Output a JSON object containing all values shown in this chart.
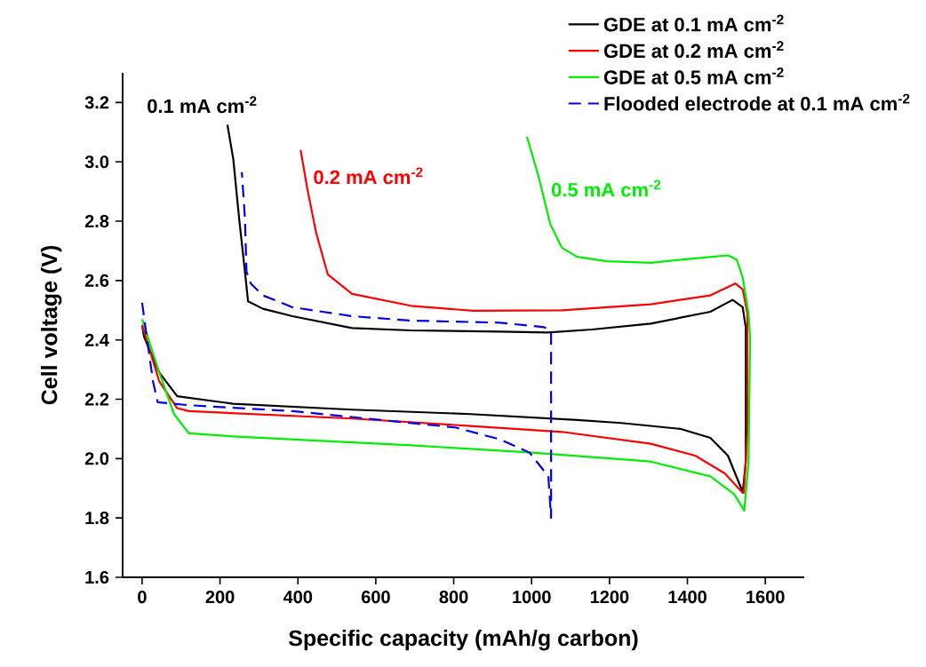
{
  "chart_data": {
    "type": "line",
    "xlabel": "Specific capacity (mAh/g carbon)",
    "ylabel": "Cell voltage (V)",
    "xlim": [
      -50,
      1700
    ],
    "ylim": [
      1.6,
      3.3
    ],
    "xticks": [
      0,
      200,
      400,
      600,
      800,
      1000,
      1200,
      1400,
      1600
    ],
    "yticks": [
      1.6,
      1.8,
      {
        "value": 2.0,
        "label": "2.0"
      },
      2.2,
      2.4,
      2.6,
      2.8,
      {
        "value": 3.0,
        "label": "3.0"
      },
      3.2
    ],
    "legend": "top right",
    "annotations": [
      "0.1 mA cm$^{-2}$",
      "0.2 mA cm$^{-2}$",
      "0.5 mA cm$^{-2}$"
    ],
    "series": [
      {
        "name": "GDE at 0.1 mA cm$^{-2}$",
        "color": "#000000",
        "line_style": "solid",
        "x": [
          0,
          5,
          44,
          90,
          233,
          539,
          843,
          1117,
          1230,
          1383,
          1459,
          1504,
          1538,
          1542,
          1550,
          1550,
          1542,
          1516,
          1459,
          1306,
          1155,
          1041,
          918,
          690,
          539,
          386,
          310,
          272,
          264,
          249,
          234,
          219
        ],
        "values": [
          2.45,
          2.41,
          2.29,
          2.21,
          2.185,
          2.165,
          2.15,
          2.13,
          2.12,
          2.1,
          2.07,
          2.01,
          1.9,
          1.885,
          1.99,
          2.44,
          2.51,
          2.535,
          2.495,
          2.455,
          2.435,
          2.425,
          2.428,
          2.432,
          2.44,
          2.48,
          2.505,
          2.53,
          2.63,
          2.81,
          3.01,
          3.125
        ]
      },
      {
        "name": "GDE at 0.2 mA cm$^{-2}$",
        "color": "#ff0000",
        "line_style": "solid",
        "x": [
          0,
          44,
          90,
          120,
          539,
          843,
          1078,
          1306,
          1420,
          1496,
          1538,
          1545,
          1554,
          1554,
          1542,
          1523,
          1459,
          1306,
          1078,
          850,
          690,
          539,
          477,
          447,
          424,
          407
        ],
        "values": [
          2.45,
          2.26,
          2.17,
          2.16,
          2.135,
          2.11,
          2.09,
          2.05,
          2.01,
          1.95,
          1.89,
          1.885,
          2.09,
          2.49,
          2.57,
          2.59,
          2.55,
          2.52,
          2.5,
          2.498,
          2.515,
          2.555,
          2.62,
          2.76,
          2.91,
          3.04
        ]
      },
      {
        "name": "GDE at 0.5 mA cm$^{-2}$",
        "color": "#00ee00",
        "line_style": "solid",
        "x": [
          0,
          44,
          82,
          120,
          233,
          690,
          1002,
          1306,
          1459,
          1520,
          1546,
          1557,
          1561,
          1557,
          1542,
          1527,
          1504,
          1421,
          1306,
          1192,
          1117,
          1078,
          1048,
          1018,
          988
        ],
        "values": [
          2.47,
          2.29,
          2.15,
          2.085,
          2.075,
          2.045,
          2.02,
          1.99,
          1.94,
          1.88,
          1.825,
          1.99,
          2.41,
          2.49,
          2.61,
          2.67,
          2.685,
          2.675,
          2.66,
          2.665,
          2.68,
          2.71,
          2.79,
          2.95,
          3.085
        ]
      },
      {
        "name": "Flooded electrode at 0.1 mA cm$^{-2}$",
        "color": "#0000ee",
        "line_style": "dashed",
        "x": [
          0,
          14,
          28,
          40,
          120,
          386,
          614,
          804,
          918,
          995,
          1043,
          1050,
          1050,
          1032,
          918,
          690,
          539,
          386,
          310,
          279,
          268,
          264,
          256
        ],
        "values": [
          2.525,
          2.39,
          2.26,
          2.19,
          2.18,
          2.16,
          2.13,
          2.105,
          2.065,
          2.02,
          1.94,
          1.8,
          2.43,
          2.443,
          2.458,
          2.465,
          2.48,
          2.51,
          2.55,
          2.59,
          2.63,
          2.81,
          2.965
        ]
      }
    ]
  }
}
